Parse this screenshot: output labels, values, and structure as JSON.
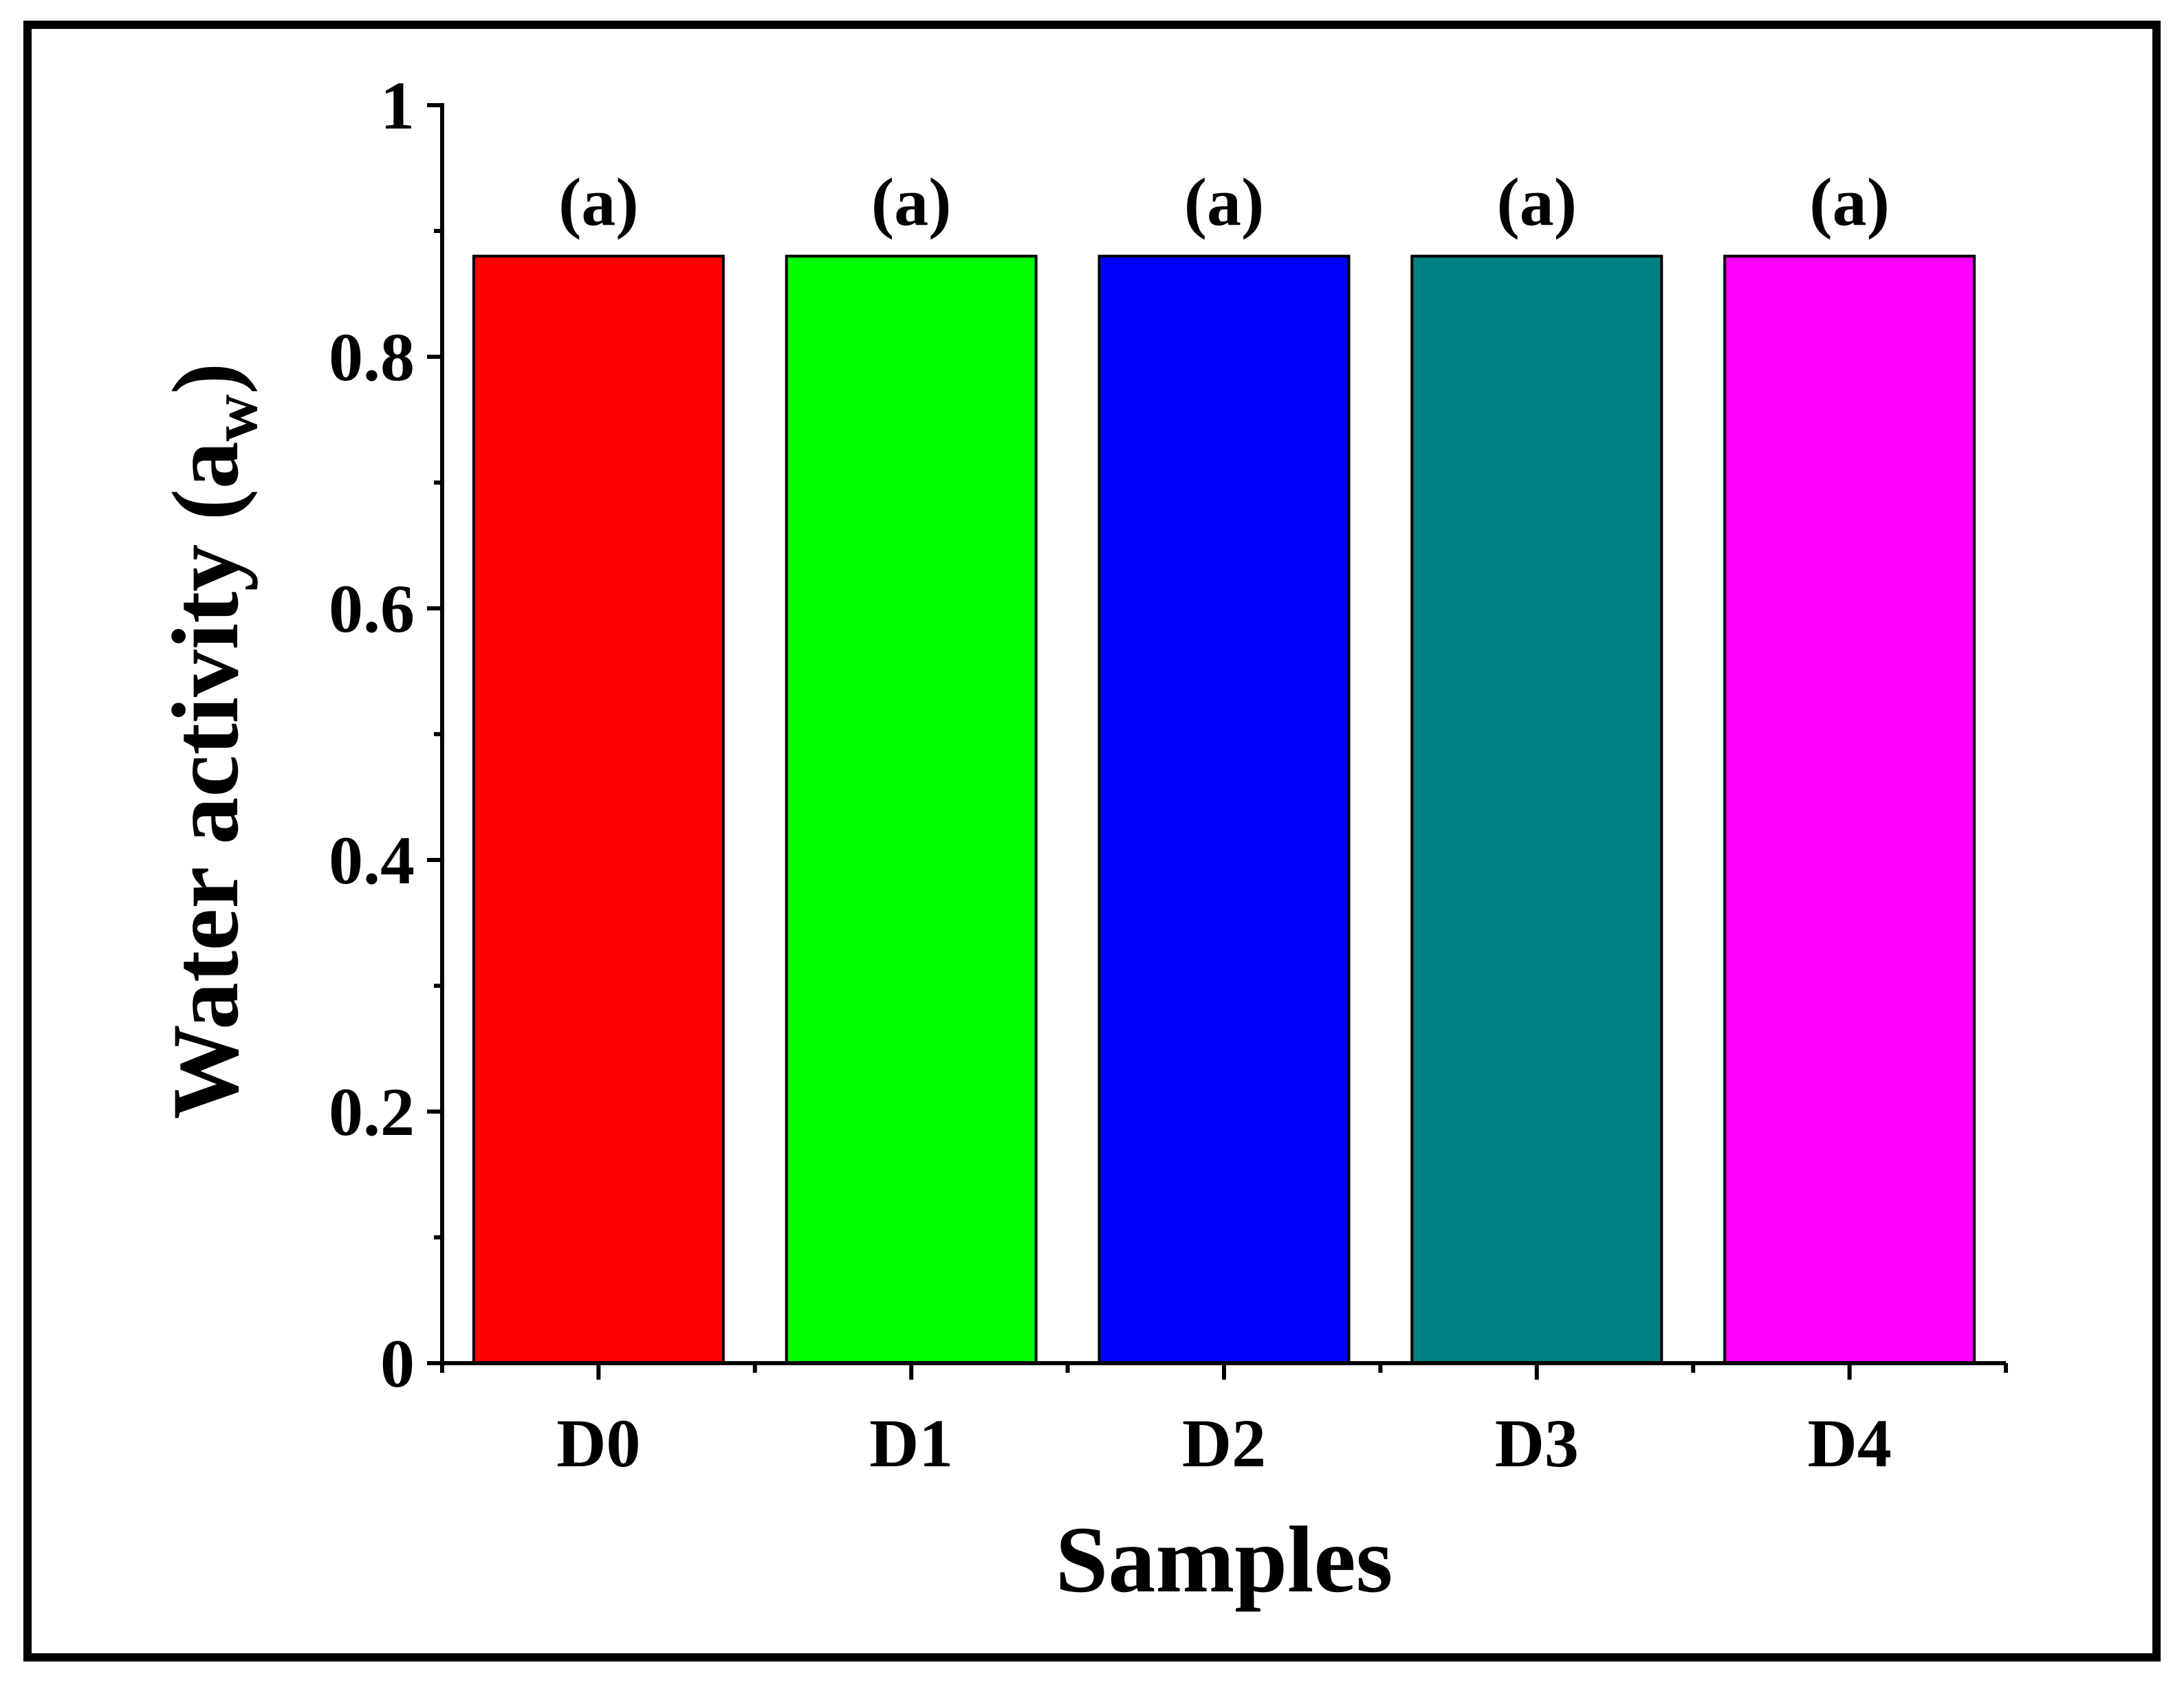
{
  "chart_data": {
    "type": "bar",
    "categories": [
      "D0",
      "D1",
      "D2",
      "D3",
      "D4"
    ],
    "values": [
      0.88,
      0.88,
      0.88,
      0.88,
      0.88
    ],
    "bar_colors": [
      "#ff0000",
      "#00ff00",
      "#0000ff",
      "#008080",
      "#ff00ff"
    ],
    "group_labels": [
      "(a)",
      "(a)",
      "(a)",
      "(a)",
      "(a)"
    ],
    "xlabel": "Samples",
    "ylabel": {
      "text": "Water activity (a",
      "subscript": "w",
      "close": ")"
    },
    "ylim": [
      0,
      1
    ],
    "yticks": [
      0,
      0.2,
      0.4,
      0.6,
      0.8,
      1
    ],
    "ytick_labels": [
      "0",
      "0.2",
      "0.4",
      "0.6",
      "0.8",
      "1"
    ],
    "grid": false,
    "legend": "none"
  }
}
